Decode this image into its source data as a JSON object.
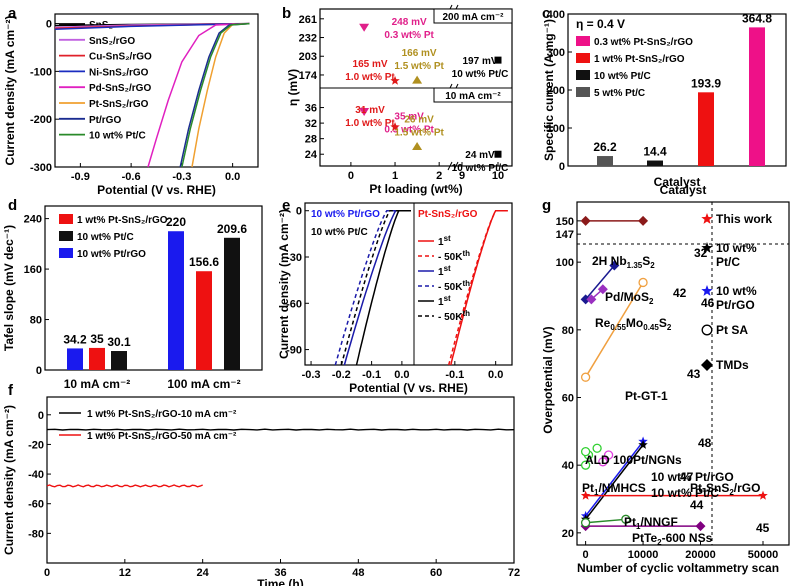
{
  "panel_letters": [
    "a",
    "b",
    "c",
    "d",
    "e",
    "f",
    "g"
  ],
  "chart_data": [
    {
      "panel": "a",
      "type": "line",
      "xlabel": "Potential (V vs. RHE)",
      "ylabel": "Current density (mA cm⁻²)",
      "xlim": [
        -1.05,
        0.15
      ],
      "ylim": [
        -300,
        20
      ],
      "xticks": [
        "-0.9",
        "-0.6",
        "-0.3",
        "0.0"
      ],
      "yticks": [
        "0",
        "-100",
        "-200",
        "-300"
      ],
      "series": [
        {
          "name": "SnS₂",
          "color": "#000000",
          "points": [
            [
              -1.05,
              -4
            ],
            [
              -0.6,
              -2
            ],
            [
              0.1,
              0
            ]
          ]
        },
        {
          "name": "SnS₂/rGO",
          "color": "#c060e0",
          "points": [
            [
              -1.05,
              -8
            ],
            [
              -0.6,
              -3
            ],
            [
              0.1,
              0
            ]
          ]
        },
        {
          "name": "Cu-SnS₂/rGO",
          "color": "#e0202a",
          "points": [
            [
              -1.05,
              -10
            ],
            [
              -0.6,
              -5
            ],
            [
              0.1,
              0
            ]
          ]
        },
        {
          "name": "Ni-SnS₂/rGO",
          "color": "#1a2cc0",
          "points": [
            [
              -1.05,
              -12
            ],
            [
              -0.6,
              -6
            ],
            [
              0.1,
              0
            ]
          ]
        },
        {
          "name": "Pd-SnS₂/rGO",
          "color": "#e020c0",
          "points": [
            [
              -0.5,
              -300
            ],
            [
              -0.45,
              -240
            ],
            [
              -0.38,
              -160
            ],
            [
              -0.3,
              -80
            ],
            [
              -0.2,
              -25
            ],
            [
              -0.1,
              -3
            ],
            [
              0.1,
              0
            ]
          ]
        },
        {
          "name": "Pt-SnS₂/rGO",
          "color": "#f0a030",
          "points": [
            [
              -0.24,
              -300
            ],
            [
              -0.2,
              -220
            ],
            [
              -0.15,
              -140
            ],
            [
              -0.1,
              -70
            ],
            [
              -0.05,
              -20
            ],
            [
              0.0,
              -2
            ],
            [
              0.1,
              0
            ]
          ]
        },
        {
          "name": "Pt/rGO",
          "color": "#1a2c90",
          "points": [
            [
              -0.31,
              -300
            ],
            [
              -0.26,
              -220
            ],
            [
              -0.2,
              -140
            ],
            [
              -0.14,
              -70
            ],
            [
              -0.08,
              -20
            ],
            [
              -0.02,
              -3
            ],
            [
              0.1,
              0
            ]
          ]
        },
        {
          "name": "10 wt% Pt/C",
          "color": "#2a8a2a",
          "points": [
            [
              -0.3,
              -300
            ],
            [
              -0.25,
              -220
            ],
            [
              -0.19,
              -140
            ],
            [
              -0.13,
              -70
            ],
            [
              -0.07,
              -20
            ],
            [
              -0.01,
              -3
            ],
            [
              0.1,
              0
            ]
          ]
        }
      ]
    },
    {
      "panel": "b",
      "type": "scatter",
      "xlabel": "Pt loading (wt%)",
      "ylabel": "η (mV)",
      "xticks": [
        "0",
        "1",
        "2",
        "9",
        "10"
      ],
      "top": {
        "label": "200 mA cm⁻²",
        "yticks": [
          "261",
          "232",
          "203",
          "174"
        ],
        "ylim": [
          160,
          270
        ],
        "points": [
          {
            "x": 0.3,
            "y": 248,
            "color": "#e0208a",
            "marker": "down",
            "l1": "248 mV",
            "l2": "0.3 wt% Pt"
          },
          {
            "x": 1.0,
            "y": 165,
            "color": "#e01a1a",
            "marker": "star",
            "l1": "165 mV",
            "l2": "1.0 wt% Pt"
          },
          {
            "x": 1.5,
            "y": 166,
            "color": "#b09020",
            "marker": "up",
            "l1": "166 mV",
            "l2": "1.5 wt% Pt"
          },
          {
            "x": 10,
            "y": 197,
            "color": "#000000",
            "marker": "square",
            "l1": "197 mV",
            "l2": "10 wt% Pt/C"
          }
        ]
      },
      "bottom": {
        "label": "10 mA cm⁻²",
        "yticks": [
          "36",
          "32",
          "28",
          "24"
        ],
        "ylim": [
          22,
          40
        ],
        "points": [
          {
            "x": 0.3,
            "y": 35,
            "color": "#e0208a",
            "marker": "down",
            "l1": "35 mV",
            "l2": "0.3 wt% Pt"
          },
          {
            "x": 1.0,
            "y": 31,
            "color": "#e01a1a",
            "marker": "star",
            "l1": "31 mV",
            "l2": "1.0 wt% Pt"
          },
          {
            "x": 1.5,
            "y": 26,
            "color": "#b09020",
            "marker": "up",
            "l1": "26 mV",
            "l2": "1.5 wt% Pt"
          },
          {
            "x": 10,
            "y": 24,
            "color": "#000000",
            "marker": "square",
            "l1": "24 mV",
            "l2": "10 wt% Pt/C"
          }
        ]
      }
    },
    {
      "panel": "c",
      "type": "bar",
      "title": "η = 0.4 V",
      "xlabel": "Catalyst",
      "ylabel": "Specific current (A mg⁻¹)",
      "ylim": [
        0,
        400
      ],
      "yticks": [
        "0",
        "100",
        "200",
        "300",
        "400"
      ],
      "categories": [
        "5 wt% Pt/C",
        "10 wt% Pt/C",
        "1 wt% Pt-SnS₂/rGO",
        "0.3 wt% Pt-SnS₂/rGO"
      ],
      "values": [
        26.2,
        14.4,
        193.9,
        364.8
      ],
      "value_labels": [
        "26.2",
        "14.4",
        "193.9",
        "364.8"
      ],
      "colors": [
        "#555555",
        "#111111",
        "#ee1111",
        "#ee1188"
      ],
      "legend": [
        {
          "label": "0.3 wt% Pt-SnS₂/rGO",
          "color": "#ee1188"
        },
        {
          "label": "1 wt% Pt-SnS₂/rGO",
          "color": "#ee1111"
        },
        {
          "label": "10 wt% Pt/C",
          "color": "#111111"
        },
        {
          "label": "5 wt% Pt/C",
          "color": "#555555"
        }
      ]
    },
    {
      "panel": "d",
      "type": "bar",
      "ylabel": "Tafel slope (mV dec⁻¹)",
      "ylim": [
        0,
        260
      ],
      "yticks": [
        "0",
        "80",
        "160",
        "240"
      ],
      "categories": [
        "10 mA cm⁻²",
        "100 mA cm⁻²"
      ],
      "series": [
        {
          "name": "10 wt% Pt/rGO",
          "color": "#1a1aee",
          "values": [
            34.2,
            220
          ]
        },
        {
          "name": "1 wt% Pt-SnS₂/rGO",
          "color": "#ee1111",
          "values": [
            35,
            156.6
          ]
        },
        {
          "name": "10 wt% Pt/C",
          "color": "#111111",
          "values": [
            30.1,
            209.6
          ]
        }
      ],
      "value_labels": [
        [
          "34.2",
          "35",
          "30.1"
        ],
        [
          "220",
          "156.6",
          "209.6"
        ]
      ],
      "legend": [
        {
          "label": "1 wt% Pt-SnS₂/rGO",
          "color": "#ee1111"
        },
        {
          "label": "10 wt% Pt/C",
          "color": "#111111"
        },
        {
          "label": "10 wt% Pt/rGO",
          "color": "#1a1aee"
        }
      ]
    },
    {
      "panel": "e",
      "type": "line",
      "xlabel": "Potential (V vs. RHE)",
      "ylabel": "Current density (mA cm⁻²)",
      "ylim": [
        -100,
        5
      ],
      "yticks": [
        "0",
        "-30",
        "-60",
        "-90"
      ],
      "left_xticks": [
        "-0.3",
        "-0.2",
        "-0.1",
        "0.0"
      ],
      "right_xticks": [
        "-0.1",
        "0.0"
      ],
      "left_title": "10 wt% Pt/rGO",
      "left_title2": "10 wt% Pt/C",
      "right_title": "Pt-SnS₂/rGO",
      "legend": [
        {
          "cycle": "1",
          "sup": "st",
          "color": "#ee1111",
          "dash": false
        },
        {
          "cycle": "- 50K",
          "sup": "th",
          "color": "#ee1111",
          "dash": true
        },
        {
          "cycle": "1",
          "sup": "st",
          "color": "#1a1aaa",
          "dash": false
        },
        {
          "cycle": "- 50K",
          "sup": "th",
          "color": "#1a1aaa",
          "dash": true
        },
        {
          "cycle": "1",
          "sup": "st",
          "color": "#000000",
          "dash": false
        },
        {
          "cycle": "- 50K",
          "sup": "th",
          "color": "#000000",
          "dash": true
        }
      ]
    },
    {
      "panel": "f",
      "type": "line",
      "xlabel": "Time (h)",
      "ylabel": "Current density (mA cm⁻²)",
      "xlim": [
        0,
        72
      ],
      "ylim": [
        -100,
        12
      ],
      "xticks": [
        "0",
        "12",
        "24",
        "36",
        "48",
        "60",
        "72"
      ],
      "yticks": [
        "0",
        "-20",
        "-40",
        "-60",
        "-80"
      ],
      "series": [
        {
          "name": "1 wt% Pt-SnS₂/rGO-10 mA cm⁻²",
          "color": "#000000",
          "x": [
            0,
            72
          ],
          "y": [
            -10,
            -10
          ]
        },
        {
          "name": "1 wt% Pt-SnS₂/rGO-50 mA cm⁻²",
          "color": "#ee1111",
          "x": [
            0,
            24
          ],
          "y": [
            -48,
            -48
          ]
        }
      ]
    },
    {
      "panel": "g",
      "type": "scatter",
      "xlabel": "Number of cyclic voltammetry scan",
      "ylabel": "Overpotential (mV)",
      "title": "Catalyst",
      "xticks": [
        "0",
        "10000",
        "20000",
        "50000"
      ],
      "yticks": [
        "20",
        "40",
        "60",
        "80",
        "100",
        "147",
        "150"
      ],
      "legend": [
        {
          "label": "This work",
          "marker": "star",
          "color": "#ee1111"
        },
        {
          "label": "10 wt% Pt/C",
          "marker": "star",
          "color": "#000000"
        },
        {
          "label": "10 wt% Pt/rGO",
          "marker": "star",
          "color": "#1a1aee"
        },
        {
          "label": "Pt SA",
          "marker": "circle",
          "color": "#000000"
        },
        {
          "label": "TMDs",
          "marker": "diamond",
          "color": "#000000"
        }
      ],
      "annotations": [
        {
          "text": "2H Nb",
          "sub": "1.35",
          "text2": "S",
          "sub2": "2",
          "ref": "32",
          "color": "#8b1a1a"
        },
        {
          "text": "Pd/MoS",
          "sub": "2",
          "ref": "42",
          "color": "#1a1a90"
        },
        {
          "text": "Re",
          "sub": "0.55",
          "text2": "Mo",
          "sub2": "0.45",
          "text3": "S",
          "sub3": "2",
          "ref": "46",
          "color": "#9a30c0"
        },
        {
          "text": "Pt-GT-1",
          "ref": "43",
          "color": "#f0a040"
        },
        {
          "text": "ALD 100Pt/NGNs",
          "ref": "48",
          "color": "#30d030"
        },
        {
          "text": "10 wt% Pt/rGO",
          "color": "#1a1aee"
        },
        {
          "text": "10 wt% Pt/C",
          "color": "#000000"
        },
        {
          "text": "Pt",
          "sub": "1",
          "text2": "/NMHCS",
          "ref": "47",
          "color": "#e040e0"
        },
        {
          "text": "Pt-SnS",
          "sub": "2",
          "text2": "/rGO",
          "color": "#ee1111"
        },
        {
          "text": "Pt",
          "sub": "1",
          "text2": "/NNGF",
          "ref": "44",
          "color": "#2a8a2a"
        },
        {
          "text": "PtTe",
          "sub": "2",
          "text2": "-600 NSs",
          "ref": "45",
          "color": "#800080"
        }
      ]
    }
  ]
}
